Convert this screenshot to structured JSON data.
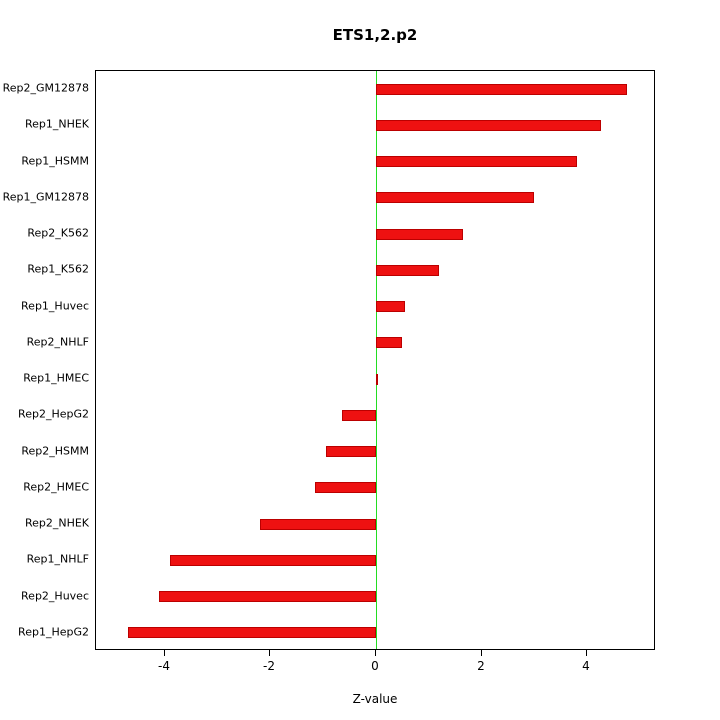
{
  "title": "ETS1,2.p2",
  "chart_data": {
    "type": "bar",
    "orientation": "horizontal",
    "title": "ETS1,2.p2",
    "xlabel": "Z-value",
    "ylabel": "",
    "xlim": [
      -5.3,
      5.3
    ],
    "xticks": [
      -4,
      -2,
      0,
      2,
      4
    ],
    "grid": false,
    "legend": false,
    "categories": [
      "Rep2_GM12878",
      "Rep1_NHEK",
      "Rep1_HSMM",
      "Rep1_GM12878",
      "Rep2_K562",
      "Rep1_K562",
      "Rep1_Huvec",
      "Rep2_NHLF",
      "Rep1_HMEC",
      "Rep2_HepG2",
      "Rep2_HSMM",
      "Rep2_HMEC",
      "Rep2_NHEK",
      "Rep1_NHLF",
      "Rep2_Huvec",
      "Rep1_HepG2"
    ],
    "values": [
      4.75,
      4.25,
      3.8,
      3.0,
      1.65,
      1.2,
      0.55,
      0.5,
      0.02,
      -0.65,
      -0.95,
      -1.15,
      -2.2,
      -3.9,
      -4.1,
      -4.7
    ],
    "colors": {
      "bar_fill": "#ee1111",
      "bar_border": "#bb0000",
      "zero_line": "#22dd22",
      "axis": "#000000",
      "text": "#000000",
      "background": "#ffffff"
    }
  }
}
